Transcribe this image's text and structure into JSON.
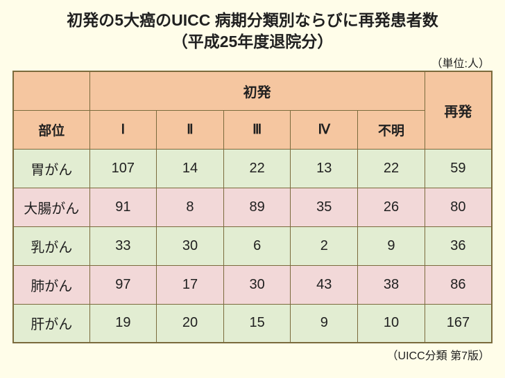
{
  "title_line1": "初発の5大癌のUICC 病期分類別ならびに再発患者数",
  "title_line2": "（平成25年度退院分）",
  "unit_label": "（単位:人）",
  "footnote": "（UICC分類 第7版）",
  "table": {
    "group_header": "初発",
    "recurrence_header": "再発",
    "site_header": "部位",
    "stage_headers": [
      "Ⅰ",
      "Ⅱ",
      "Ⅲ",
      "Ⅳ",
      "不明"
    ],
    "rows": [
      {
        "site": "胃がん",
        "vals": [
          "107",
          "14",
          "22",
          "13",
          "22"
        ],
        "rec": "59"
      },
      {
        "site": "大腸がん",
        "vals": [
          "91",
          "8",
          "89",
          "35",
          "26"
        ],
        "rec": "80"
      },
      {
        "site": "乳がん",
        "vals": [
          "33",
          "30",
          "6",
          "2",
          "9"
        ],
        "rec": "36"
      },
      {
        "site": "肺がん",
        "vals": [
          "97",
          "17",
          "30",
          "43",
          "38"
        ],
        "rec": "86"
      },
      {
        "site": "肝がん",
        "vals": [
          "19",
          "20",
          "15",
          "9",
          "10"
        ],
        "rec": "167"
      }
    ]
  },
  "colors": {
    "page_bg": "#fffde9",
    "header_bg": "#f5c6a0",
    "row_even_bg": "#e2edd2",
    "row_odd_bg": "#f2d8d8",
    "border": "#7a6a3c",
    "text": "#202020"
  }
}
